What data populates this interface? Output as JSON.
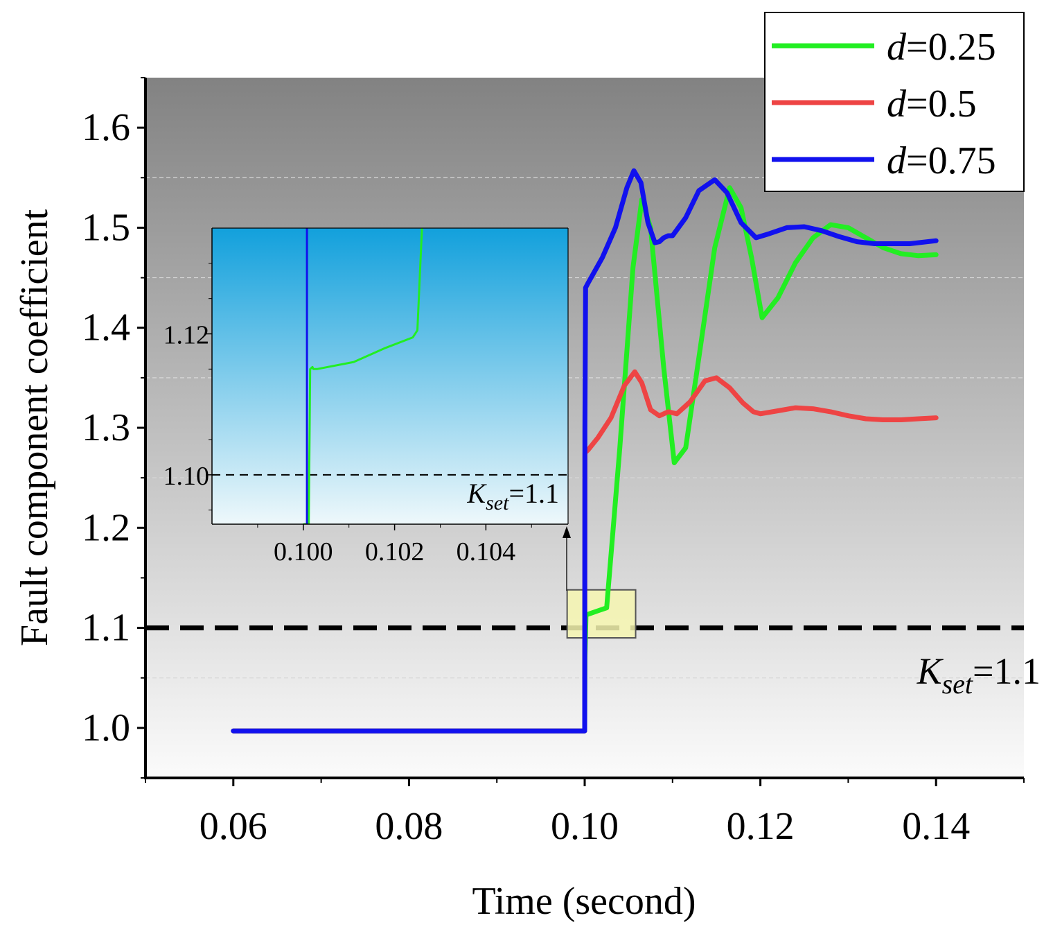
{
  "colors": {
    "green": "#22ee22",
    "red": "#ee4444",
    "blue": "#1111ee",
    "threshold": "#000000",
    "bg_top": "#828282",
    "bg_bottom": "#fbfbfb",
    "inset_top": "#12a0dc",
    "inset_bottom": "#eef8fb",
    "zoom_box": "#f6f6b0"
  },
  "chart_data": {
    "type": "line",
    "title": "",
    "xlabel": "Time (second)",
    "ylabel": "Fault component coefficient",
    "xlim": [
      0.05,
      0.15
    ],
    "ylim": [
      0.95,
      1.65
    ],
    "xticks": [
      0.06,
      0.08,
      0.1,
      0.12,
      0.14
    ],
    "xtick_labels": [
      "0.06",
      "0.08",
      "0.10",
      "0.12",
      "0.14"
    ],
    "yticks": [
      1.0,
      1.1,
      1.2,
      1.3,
      1.4,
      1.5,
      1.6
    ],
    "ytick_labels": [
      "1.0",
      "1.1",
      "1.2",
      "1.3",
      "1.4",
      "1.5",
      "1.6"
    ],
    "grid": true,
    "legend_position": "top-right",
    "threshold": {
      "value": 1.1,
      "label_main": "K",
      "label_sub": "set",
      "label_rest": "=1.1"
    },
    "series": [
      {
        "name": "d=0.25",
        "legend_italic": "d",
        "legend_rest": "=0.25",
        "color_key": "green",
        "x": [
          0.06,
          0.1,
          0.10003,
          0.10015,
          0.1005,
          0.1015,
          0.1025,
          0.104,
          0.1055,
          0.1065,
          0.1075,
          0.109,
          0.1102,
          0.1115,
          0.113,
          0.1148,
          0.1165,
          0.1178,
          0.119,
          0.1202,
          0.122,
          0.124,
          0.126,
          0.128,
          0.13,
          0.132,
          0.134,
          0.136,
          0.138,
          0.14
        ],
        "y": [
          0.997,
          0.997,
          1.07,
          1.113,
          1.114,
          1.117,
          1.12,
          1.28,
          1.46,
          1.528,
          1.5,
          1.36,
          1.265,
          1.28,
          1.37,
          1.48,
          1.54,
          1.52,
          1.47,
          1.41,
          1.43,
          1.465,
          1.49,
          1.503,
          1.5,
          1.49,
          1.48,
          1.474,
          1.472,
          1.473
        ]
      },
      {
        "name": "d=0.5",
        "legend_italic": "d",
        "legend_rest": "=0.5",
        "color_key": "red",
        "x": [
          0.06,
          0.1,
          0.10003,
          0.1004,
          0.1015,
          0.103,
          0.1045,
          0.1057,
          0.1065,
          0.1075,
          0.1085,
          0.1095,
          0.1105,
          0.112,
          0.1137,
          0.115,
          0.1165,
          0.118,
          0.1192,
          0.12,
          0.122,
          0.124,
          0.126,
          0.128,
          0.13,
          0.132,
          0.134,
          0.136,
          0.138,
          0.14
        ],
        "y": [
          0.997,
          0.997,
          1.275,
          1.278,
          1.29,
          1.31,
          1.342,
          1.356,
          1.345,
          1.318,
          1.312,
          1.316,
          1.314,
          1.326,
          1.347,
          1.35,
          1.34,
          1.325,
          1.316,
          1.314,
          1.317,
          1.32,
          1.319,
          1.316,
          1.312,
          1.309,
          1.308,
          1.308,
          1.309,
          1.31
        ]
      },
      {
        "name": "d=0.75",
        "legend_italic": "d",
        "legend_rest": "=0.75",
        "color_key": "blue",
        "x": [
          0.06,
          0.1,
          0.10002,
          0.1001,
          0.1004,
          0.102,
          0.1035,
          0.1048,
          0.1056,
          0.1064,
          0.1072,
          0.108,
          0.1085,
          0.109,
          0.1095,
          0.11,
          0.1115,
          0.113,
          0.1148,
          0.1162,
          0.1178,
          0.1195,
          0.121,
          0.123,
          0.125,
          0.127,
          0.129,
          0.131,
          0.133,
          0.135,
          0.137,
          0.14
        ],
        "y": [
          0.997,
          0.997,
          1.3,
          1.44,
          1.445,
          1.47,
          1.5,
          1.54,
          1.557,
          1.545,
          1.505,
          1.485,
          1.486,
          1.49,
          1.492,
          1.492,
          1.51,
          1.537,
          1.548,
          1.535,
          1.505,
          1.49,
          1.494,
          1.5,
          1.501,
          1.497,
          1.491,
          1.486,
          1.484,
          1.484,
          1.484,
          1.487
        ]
      }
    ],
    "zoom_region": {
      "x": [
        0.098,
        0.1058
      ],
      "y": [
        1.09,
        1.138
      ]
    },
    "inset": {
      "xlim": [
        0.098,
        0.1058
      ],
      "ylim": [
        1.093,
        1.135
      ],
      "xticks": [
        0.1,
        0.102,
        0.104
      ],
      "xtick_labels": [
        "0.100",
        "0.102",
        "0.104"
      ],
      "yticks": [
        1.1,
        1.12
      ],
      "ytick_labels": [
        "1.10",
        "1.12"
      ],
      "threshold_label_main": "K",
      "threshold_label_sub": "set",
      "threshold_label_rest": "=1.1",
      "series": [
        {
          "color_key": "green",
          "x": [
            0.1,
            0.10012,
            0.10015,
            0.1002,
            0.10022,
            0.1003,
            0.1011,
            0.1018,
            0.1024,
            0.1025,
            0.1026
          ],
          "y": [
            1.093,
            1.093,
            1.115,
            1.1153,
            1.115,
            1.115,
            1.116,
            1.118,
            1.1195,
            1.1205,
            1.135
          ]
        },
        {
          "color_key": "blue",
          "x": [
            0.10008,
            0.10008
          ],
          "y": [
            1.093,
            1.135
          ]
        }
      ]
    }
  }
}
